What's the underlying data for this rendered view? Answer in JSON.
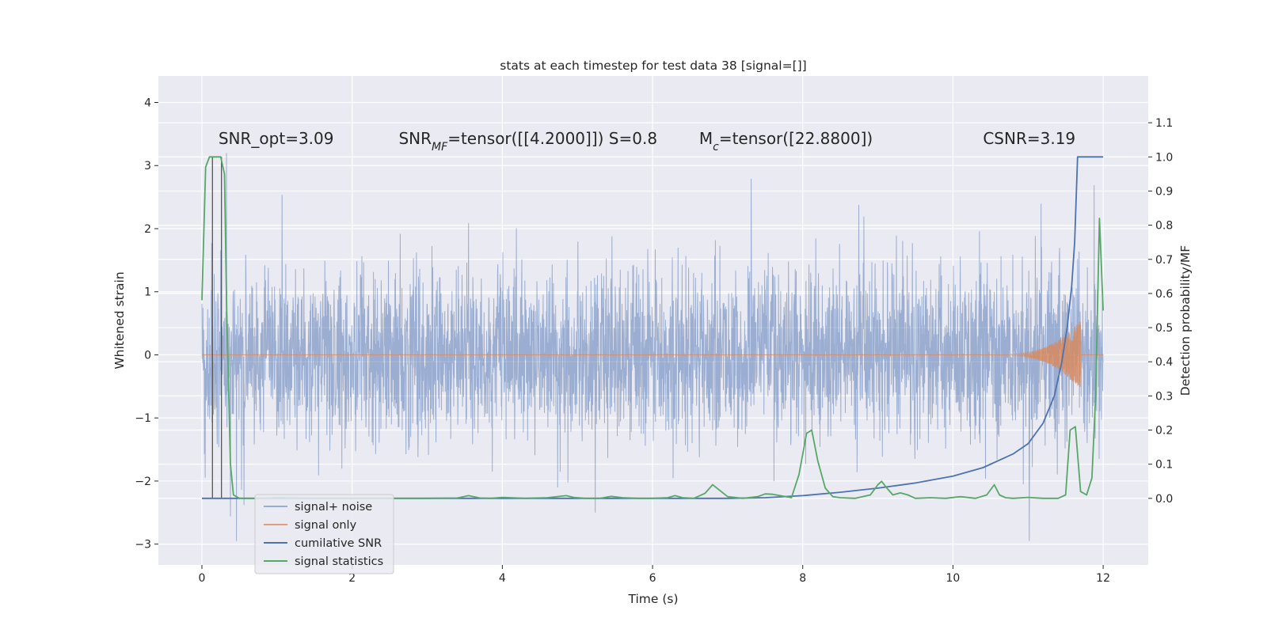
{
  "colors": {
    "background": "#eaeaf2",
    "grid": "#ffffff",
    "noise": "#4c72b0",
    "signal": "#dd8452",
    "csnr": "#4c72b0",
    "stats": "#55a868",
    "vline": "#555555"
  },
  "chart_data": {
    "type": "line",
    "title": "stats at each timestep for test data 38 [signal=[]]",
    "xlabel": "Time (s)",
    "ylabel": "Whitened strain",
    "ylabel_right": "Detection probability/MF",
    "xlim": [
      -0.58,
      12.6
    ],
    "ylim": [
      -3.33,
      4.42
    ],
    "ylim_right": [
      -0.195,
      1.237
    ],
    "xticks": [
      0,
      2,
      4,
      6,
      8,
      10,
      12
    ],
    "xtick_labels": [
      "0",
      "2",
      "4",
      "6",
      "8",
      "10",
      "12"
    ],
    "yticks": [
      -3,
      -2,
      -1,
      0,
      1,
      2,
      3,
      4
    ],
    "ytick_labels": [
      "−3",
      "−2",
      "−1",
      "0",
      "1",
      "2",
      "3",
      "4"
    ],
    "yticks_right": [
      0.0,
      0.1,
      0.2,
      0.3,
      0.4,
      0.5,
      0.6,
      0.7,
      0.8,
      0.9,
      1.0,
      1.1
    ],
    "ytick_labels_right": [
      "0.0",
      "0.1",
      "0.2",
      "0.3",
      "0.4",
      "0.5",
      "0.6",
      "0.7",
      "0.8",
      "0.9",
      "1.0",
      "1.1"
    ],
    "annotations": [
      {
        "id": "snr-opt",
        "text": "SNR_opt=3.09",
        "x": 0.22,
        "y": 3.34
      },
      {
        "id": "snr-mf",
        "text": "SNR_MF=tensor([[4.2000]]) S=0.8",
        "x": 2.62,
        "y": 3.34
      },
      {
        "id": "mc",
        "text": "M_c=tensor([22.8800])",
        "x": 6.62,
        "y": 3.34
      },
      {
        "id": "csnr-anno",
        "text": "CSNR=3.19",
        "x": 10.4,
        "y": 3.34
      }
    ],
    "vlines": [
      0.14,
      0.26
    ],
    "series": [
      {
        "name": "signal+ noise",
        "axis": "left",
        "style": "noise",
        "t_start": 0,
        "t_end": 12,
        "envelope": 1.05,
        "seed": 38
      },
      {
        "name": "signal only",
        "axis": "left",
        "style": "chirp",
        "t_start": 10.5,
        "t_end": 11.7,
        "peak": 0.55
      },
      {
        "name": "cumilative SNR",
        "axis": "right",
        "x": [
          0,
          7.0,
          7.5,
          8.0,
          8.5,
          9.0,
          9.5,
          10.0,
          10.4,
          10.8,
          11.0,
          11.2,
          11.35,
          11.45,
          11.52,
          11.58,
          11.62,
          11.66,
          11.7,
          12.0
        ],
        "y": [
          0,
          0,
          0.002,
          0.008,
          0.018,
          0.03,
          0.045,
          0.065,
          0.09,
          0.13,
          0.16,
          0.22,
          0.3,
          0.4,
          0.5,
          0.62,
          0.75,
          1.0,
          1.0,
          1.0
        ]
      },
      {
        "name": "signal statistics",
        "axis": "right",
        "x": [
          0,
          0.05,
          0.1,
          0.15,
          0.2,
          0.25,
          0.3,
          0.33,
          0.38,
          0.42,
          0.5,
          0.6,
          0.8,
          1.0,
          1.5,
          2.0,
          2.5,
          3.0,
          3.4,
          3.55,
          3.7,
          3.85,
          4.0,
          4.3,
          4.6,
          4.85,
          4.95,
          5.1,
          5.3,
          5.45,
          5.6,
          5.8,
          6.0,
          6.2,
          6.3,
          6.4,
          6.55,
          6.7,
          6.8,
          7.0,
          7.2,
          7.4,
          7.5,
          7.6,
          7.7,
          7.85,
          7.95,
          8.05,
          8.12,
          8.2,
          8.3,
          8.4,
          8.5,
          8.7,
          8.9,
          9.0,
          9.05,
          9.12,
          9.2,
          9.3,
          9.4,
          9.5,
          9.7,
          9.9,
          10.1,
          10.3,
          10.45,
          10.55,
          10.62,
          10.7,
          10.8,
          11.0,
          11.2,
          11.4,
          11.5,
          11.56,
          11.63,
          11.7,
          11.78,
          11.85,
          11.9,
          11.95,
          12.0
        ],
        "y": [
          0.58,
          0.97,
          1.0,
          1.0,
          1.0,
          1.0,
          0.95,
          0.55,
          0.1,
          0.01,
          0.0,
          0.0,
          0.0,
          0.002,
          0.0,
          0.0,
          0.0,
          0.0,
          0.001,
          0.008,
          0.001,
          0.0,
          0.003,
          0.0,
          0.002,
          0.008,
          0.003,
          0.0,
          0.0,
          0.006,
          0.002,
          0.0,
          0.0,
          0.002,
          0.008,
          0.002,
          0.0,
          0.015,
          0.04,
          0.005,
          0.0,
          0.005,
          0.013,
          0.012,
          0.008,
          0.002,
          0.07,
          0.19,
          0.2,
          0.11,
          0.03,
          0.005,
          0.002,
          0.0,
          0.01,
          0.04,
          0.05,
          0.03,
          0.01,
          0.016,
          0.01,
          0.0,
          0.002,
          0.0,
          0.005,
          0.0,
          0.01,
          0.04,
          0.01,
          0.002,
          0.0,
          0.003,
          0.0,
          0.0,
          0.01,
          0.2,
          0.21,
          0.02,
          0.01,
          0.06,
          0.3,
          0.82,
          0.55
        ]
      }
    ]
  }
}
